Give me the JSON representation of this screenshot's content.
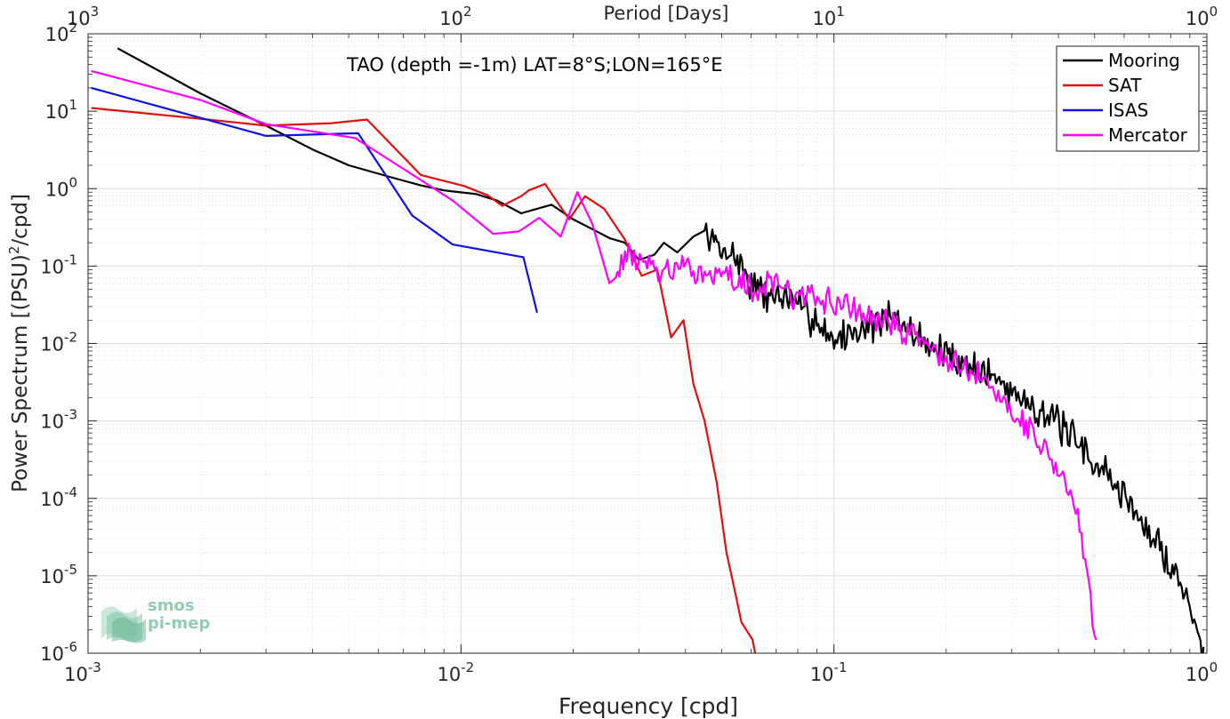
{
  "chart_data": {
    "type": "line",
    "title": "TAO (depth =-1m) LAT=8°S;LON=165°E",
    "xlabel": "Frequency [cpd]",
    "ylabel": "Power Spectrum [(PSU)",
    "ylabel_sup": "2",
    "ylabel_tail": "/cpd]",
    "top_xlabel": "Period [Days]",
    "xscale": "log",
    "yscale": "log",
    "xlim": [
      0.001,
      1
    ],
    "ylim": [
      1e-06,
      100
    ],
    "grid": true,
    "legend_position": "top-right",
    "x_ticks": [
      {
        "value": 0.001,
        "mant": "10",
        "exp": "-3"
      },
      {
        "value": 0.01,
        "mant": "10",
        "exp": "-2"
      },
      {
        "value": 0.1,
        "mant": "10",
        "exp": "-1"
      },
      {
        "value": 1,
        "mant": "10",
        "exp": "0"
      }
    ],
    "top_x_ticks": [
      {
        "at_frequency": 0.001,
        "mant": "10",
        "exp": "3"
      },
      {
        "at_frequency": 0.01,
        "mant": "10",
        "exp": "2"
      },
      {
        "at_frequency": 0.1,
        "mant": "10",
        "exp": "1"
      },
      {
        "at_frequency": 1,
        "mant": "10",
        "exp": "0"
      }
    ],
    "y_ticks": [
      {
        "value": 1e-06,
        "mant": "10",
        "exp": "-6"
      },
      {
        "value": 1e-05,
        "mant": "10",
        "exp": "-5"
      },
      {
        "value": 0.0001,
        "mant": "10",
        "exp": "-4"
      },
      {
        "value": 0.001,
        "mant": "10",
        "exp": "-3"
      },
      {
        "value": 0.01,
        "mant": "10",
        "exp": "-2"
      },
      {
        "value": 0.1,
        "mant": "10",
        "exp": "-1"
      },
      {
        "value": 1,
        "mant": "10",
        "exp": "0"
      },
      {
        "value": 10,
        "mant": "10",
        "exp": "1"
      },
      {
        "value": 100,
        "mant": "10",
        "exp": "2"
      }
    ],
    "series": [
      {
        "name": "Mooring",
        "color": "#000000",
        "noise": {
          "x_start": 0.045,
          "x_end": 0.98,
          "count": 320,
          "amp_dex": 0.28,
          "seed": 7
        },
        "points": [
          [
            0.0012,
            65
          ],
          [
            0.002,
            17
          ],
          [
            0.003,
            6.5
          ],
          [
            0.004,
            3.2
          ],
          [
            0.005,
            2.0
          ],
          [
            0.0065,
            1.4
          ],
          [
            0.0078,
            1.1
          ],
          [
            0.009,
            0.95
          ],
          [
            0.011,
            0.85
          ],
          [
            0.0125,
            0.7
          ],
          [
            0.0145,
            0.48
          ],
          [
            0.016,
            0.55
          ],
          [
            0.0175,
            0.62
          ],
          [
            0.02,
            0.4
          ],
          [
            0.0225,
            0.3
          ],
          [
            0.025,
            0.23
          ],
          [
            0.0275,
            0.2
          ],
          [
            0.03,
            0.12
          ],
          [
            0.033,
            0.14
          ],
          [
            0.035,
            0.2
          ],
          [
            0.038,
            0.15
          ],
          [
            0.042,
            0.24
          ],
          [
            0.045,
            0.26
          ],
          [
            0.048,
            0.2
          ],
          [
            0.05,
            0.14
          ],
          [
            0.052,
            0.17
          ],
          [
            0.055,
            0.12
          ],
          [
            0.06,
            0.06
          ],
          [
            0.065,
            0.04
          ],
          [
            0.07,
            0.045
          ],
          [
            0.08,
            0.03
          ],
          [
            0.09,
            0.02
          ],
          [
            0.1,
            0.011
          ],
          [
            0.12,
            0.016
          ],
          [
            0.14,
            0.022
          ],
          [
            0.17,
            0.012
          ],
          [
            0.2,
            0.007
          ],
          [
            0.25,
            0.0045
          ],
          [
            0.3,
            0.0025
          ],
          [
            0.35,
            0.0015
          ],
          [
            0.4,
            0.0009
          ],
          [
            0.45,
            0.0005
          ],
          [
            0.5,
            0.0003
          ],
          [
            0.55,
            0.00018
          ],
          [
            0.6,
            0.00011
          ],
          [
            0.65,
            6e-05
          ],
          [
            0.7,
            3.5e-05
          ],
          [
            0.75,
            2.2e-05
          ],
          [
            0.8,
            1.4e-05
          ],
          [
            0.85,
            8e-06
          ],
          [
            0.9,
            4e-06
          ],
          [
            0.93,
            2.5e-06
          ],
          [
            0.96,
            1.5e-06
          ],
          [
            0.98,
            1e-06
          ]
        ]
      },
      {
        "name": "SAT",
        "color": "#e01010",
        "points": [
          [
            0.00102,
            11
          ],
          [
            0.002,
            8
          ],
          [
            0.003,
            6.5
          ],
          [
            0.0045,
            7
          ],
          [
            0.0056,
            7.8
          ],
          [
            0.0078,
            1.5
          ],
          [
            0.0102,
            1.08
          ],
          [
            0.0118,
            0.82
          ],
          [
            0.0129,
            0.6
          ],
          [
            0.0145,
            0.8
          ],
          [
            0.0152,
            0.95
          ],
          [
            0.0168,
            1.15
          ],
          [
            0.0195,
            0.4
          ],
          [
            0.0215,
            0.8
          ],
          [
            0.0242,
            0.55
          ],
          [
            0.0275,
            0.22
          ],
          [
            0.0305,
            0.075
          ],
          [
            0.0336,
            0.09
          ],
          [
            0.0366,
            0.012
          ],
          [
            0.0395,
            0.02
          ],
          [
            0.042,
            0.003
          ],
          [
            0.045,
            0.001
          ],
          [
            0.0485,
            0.00016
          ],
          [
            0.0515,
            2e-05
          ],
          [
            0.054,
            7e-06
          ],
          [
            0.0565,
            2.5e-06
          ],
          [
            0.0605,
            1.5e-06
          ],
          [
            0.0615,
            1e-06
          ]
        ]
      },
      {
        "name": "ISAS",
        "color": "#1010e0",
        "points": [
          [
            0.00102,
            20
          ],
          [
            0.003,
            4.8
          ],
          [
            0.0053,
            5.2
          ],
          [
            0.0074,
            0.45
          ],
          [
            0.0095,
            0.19
          ],
          [
            0.0147,
            0.13
          ],
          [
            0.016,
            0.025
          ]
        ]
      },
      {
        "name": "Mercator",
        "color": "#ff00ff",
        "noise": {
          "x_start": 0.026,
          "x_end": 0.505,
          "count": 260,
          "amp_dex": 0.22,
          "seed": 13
        },
        "points": [
          [
            0.00102,
            33
          ],
          [
            0.002,
            14
          ],
          [
            0.003,
            6.8
          ],
          [
            0.0052,
            4.5
          ],
          [
            0.0076,
            1.4
          ],
          [
            0.0095,
            0.7
          ],
          [
            0.0122,
            0.26
          ],
          [
            0.0143,
            0.28
          ],
          [
            0.0162,
            0.42
          ],
          [
            0.0185,
            0.24
          ],
          [
            0.0205,
            0.9
          ],
          [
            0.0225,
            0.35
          ],
          [
            0.025,
            0.06
          ],
          [
            0.028,
            0.15
          ],
          [
            0.032,
            0.1
          ],
          [
            0.036,
            0.08
          ],
          [
            0.04,
            0.09
          ],
          [
            0.05,
            0.08
          ],
          [
            0.06,
            0.05
          ],
          [
            0.07,
            0.06
          ],
          [
            0.08,
            0.04
          ],
          [
            0.1,
            0.035
          ],
          [
            0.12,
            0.025
          ],
          [
            0.14,
            0.018
          ],
          [
            0.17,
            0.012
          ],
          [
            0.2,
            0.006
          ],
          [
            0.25,
            0.0035
          ],
          [
            0.3,
            0.0015
          ],
          [
            0.35,
            0.0006
          ],
          [
            0.4,
            0.00025
          ],
          [
            0.44,
            8e-05
          ],
          [
            0.47,
            2e-05
          ],
          [
            0.49,
            4e-06
          ],
          [
            0.5,
            1.5e-06
          ],
          [
            0.505,
            1e-06
          ]
        ]
      }
    ]
  },
  "watermark": {
    "line1": "smos",
    "line2": "pi-mep",
    "color": "#7fc4a4"
  }
}
